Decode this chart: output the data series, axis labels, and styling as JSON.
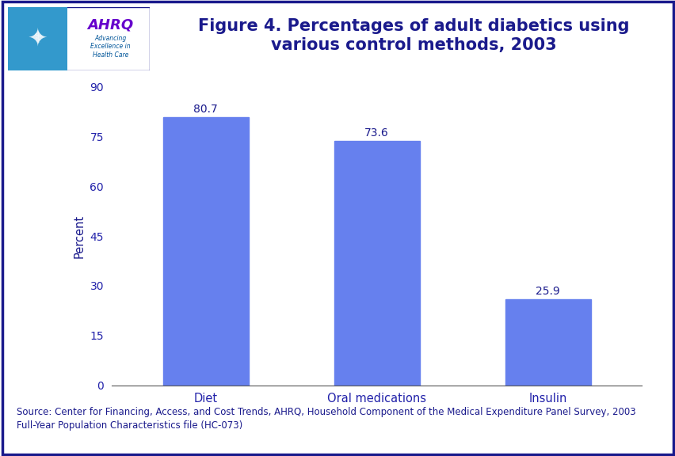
{
  "categories": [
    "Diet",
    "Oral medications",
    "Insulin"
  ],
  "values": [
    80.7,
    73.6,
    25.9
  ],
  "bar_color": "#6680EE",
  "ylabel": "Percent",
  "ylim": [
    0,
    90
  ],
  "yticks": [
    0,
    15,
    30,
    45,
    60,
    75,
    90
  ],
  "title": "Figure 4. Percentages of adult diabetics using\nvarious control methods, 2003",
  "title_color": "#1a1a8c",
  "title_fontsize": 15,
  "axis_label_color": "#1a1a8c",
  "tick_label_color": "#2222aa",
  "bar_label_color": "#1a1a8c",
  "source_text_line1": "Source: Center for Financing, Access, and Cost Trends, AHRQ, Household Component of the Medical Expenditure Panel Survey, 2003",
  "source_text_line2": "Full-Year Population Characteristics file (HC-073)",
  "source_fontsize": 8.5,
  "source_color": "#1a1a8c",
  "background_color": "#ffffff",
  "border_color": "#1a1a8c",
  "header_line_color": "#1a1a8c",
  "bar_width": 0.5,
  "logo_bg_color": "#3399cc",
  "logo_text_color": "#6600cc",
  "logo_sub_color": "#005599"
}
